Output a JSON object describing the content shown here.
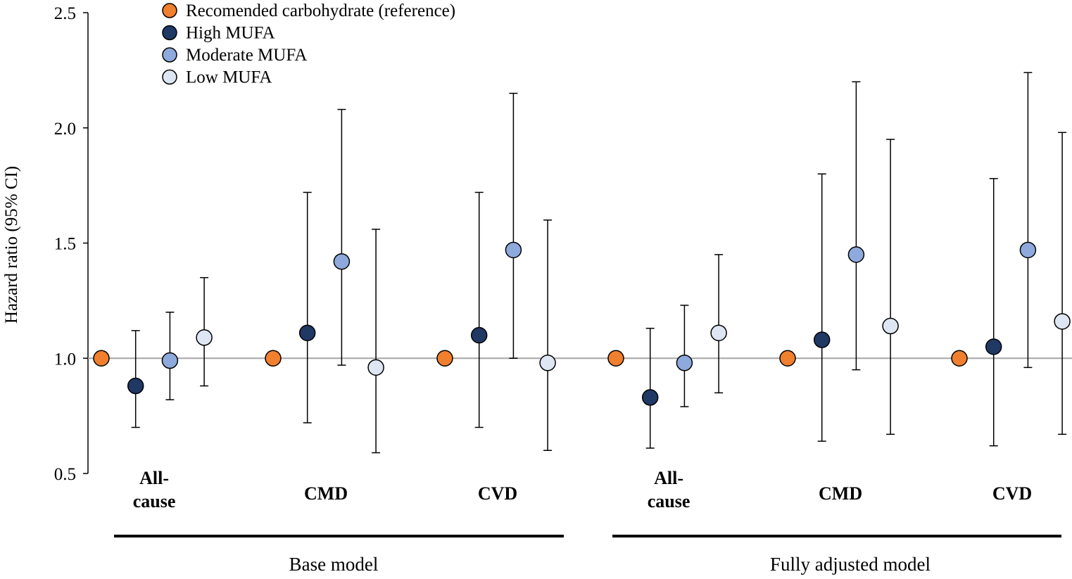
{
  "chart_data": {
    "type": "scatter",
    "subtype": "forest-plot",
    "ylabel": "Hazard ratio (95% CI)",
    "ylim": [
      0.5,
      2.5
    ],
    "yticks": [
      "0.5",
      "1.0",
      "1.5",
      "2.0",
      "2.5"
    ],
    "reference_line": 1.0,
    "legend": [
      {
        "name": "Recomended carbohydrate (reference)",
        "color": "#F07F2E"
      },
      {
        "name": "High MUFA",
        "color": "#1F3864"
      },
      {
        "name": "Moderate MUFA",
        "color": "#8EA9DB"
      },
      {
        "name": "Low MUFA",
        "color": "#DDE6F2"
      }
    ],
    "groups": [
      {
        "label": "Base model",
        "categories": [
          {
            "label": [
              "All-",
              "cause"
            ],
            "points": [
              {
                "series": "Recomended carbohydrate (reference)",
                "hr": 1.0
              },
              {
                "series": "High MUFA",
                "hr": 0.88,
                "lo": 0.7,
                "hi": 1.12
              },
              {
                "series": "Moderate MUFA",
                "hr": 0.99,
                "lo": 0.82,
                "hi": 1.2
              },
              {
                "series": "Low MUFA",
                "hr": 1.09,
                "lo": 0.88,
                "hi": 1.35
              }
            ]
          },
          {
            "label": [
              "CMD"
            ],
            "points": [
              {
                "series": "Recomended carbohydrate (reference)",
                "hr": 1.0
              },
              {
                "series": "High MUFA",
                "hr": 1.11,
                "lo": 0.72,
                "hi": 1.72
              },
              {
                "series": "Moderate MUFA",
                "hr": 1.42,
                "lo": 0.97,
                "hi": 2.08
              },
              {
                "series": "Low MUFA",
                "hr": 0.96,
                "lo": 0.59,
                "hi": 1.56
              }
            ]
          },
          {
            "label": [
              "CVD"
            ],
            "points": [
              {
                "series": "Recomended carbohydrate (reference)",
                "hr": 1.0
              },
              {
                "series": "High MUFA",
                "hr": 1.1,
                "lo": 0.7,
                "hi": 1.72
              },
              {
                "series": "Moderate MUFA",
                "hr": 1.47,
                "lo": 1.0,
                "hi": 2.15
              },
              {
                "series": "Low MUFA",
                "hr": 0.98,
                "lo": 0.6,
                "hi": 1.6
              }
            ]
          }
        ]
      },
      {
        "label": "Fully adjusted model",
        "categories": [
          {
            "label": [
              "All-",
              "cause"
            ],
            "points": [
              {
                "series": "Recomended carbohydrate (reference)",
                "hr": 1.0
              },
              {
                "series": "High MUFA",
                "hr": 0.83,
                "lo": 0.61,
                "hi": 1.13
              },
              {
                "series": "Moderate MUFA",
                "hr": 0.98,
                "lo": 0.79,
                "hi": 1.23
              },
              {
                "series": "Low MUFA",
                "hr": 1.11,
                "lo": 0.85,
                "hi": 1.45
              }
            ]
          },
          {
            "label": [
              "CMD"
            ],
            "points": [
              {
                "series": "Recomended carbohydrate (reference)",
                "hr": 1.0
              },
              {
                "series": "High MUFA",
                "hr": 1.08,
                "lo": 0.64,
                "hi": 1.8
              },
              {
                "series": "Moderate MUFA",
                "hr": 1.45,
                "lo": 0.95,
                "hi": 2.2
              },
              {
                "series": "Low MUFA",
                "hr": 1.14,
                "lo": 0.67,
                "hi": 1.95
              }
            ]
          },
          {
            "label": [
              "CVD"
            ],
            "points": [
              {
                "series": "Recomended carbohydrate (reference)",
                "hr": 1.0
              },
              {
                "series": "High MUFA",
                "hr": 1.05,
                "lo": 0.62,
                "hi": 1.78
              },
              {
                "series": "Moderate MUFA",
                "hr": 1.47,
                "lo": 0.96,
                "hi": 2.24
              },
              {
                "series": "Low MUFA",
                "hr": 1.16,
                "lo": 0.67,
                "hi": 1.98
              }
            ]
          }
        ]
      }
    ]
  }
}
